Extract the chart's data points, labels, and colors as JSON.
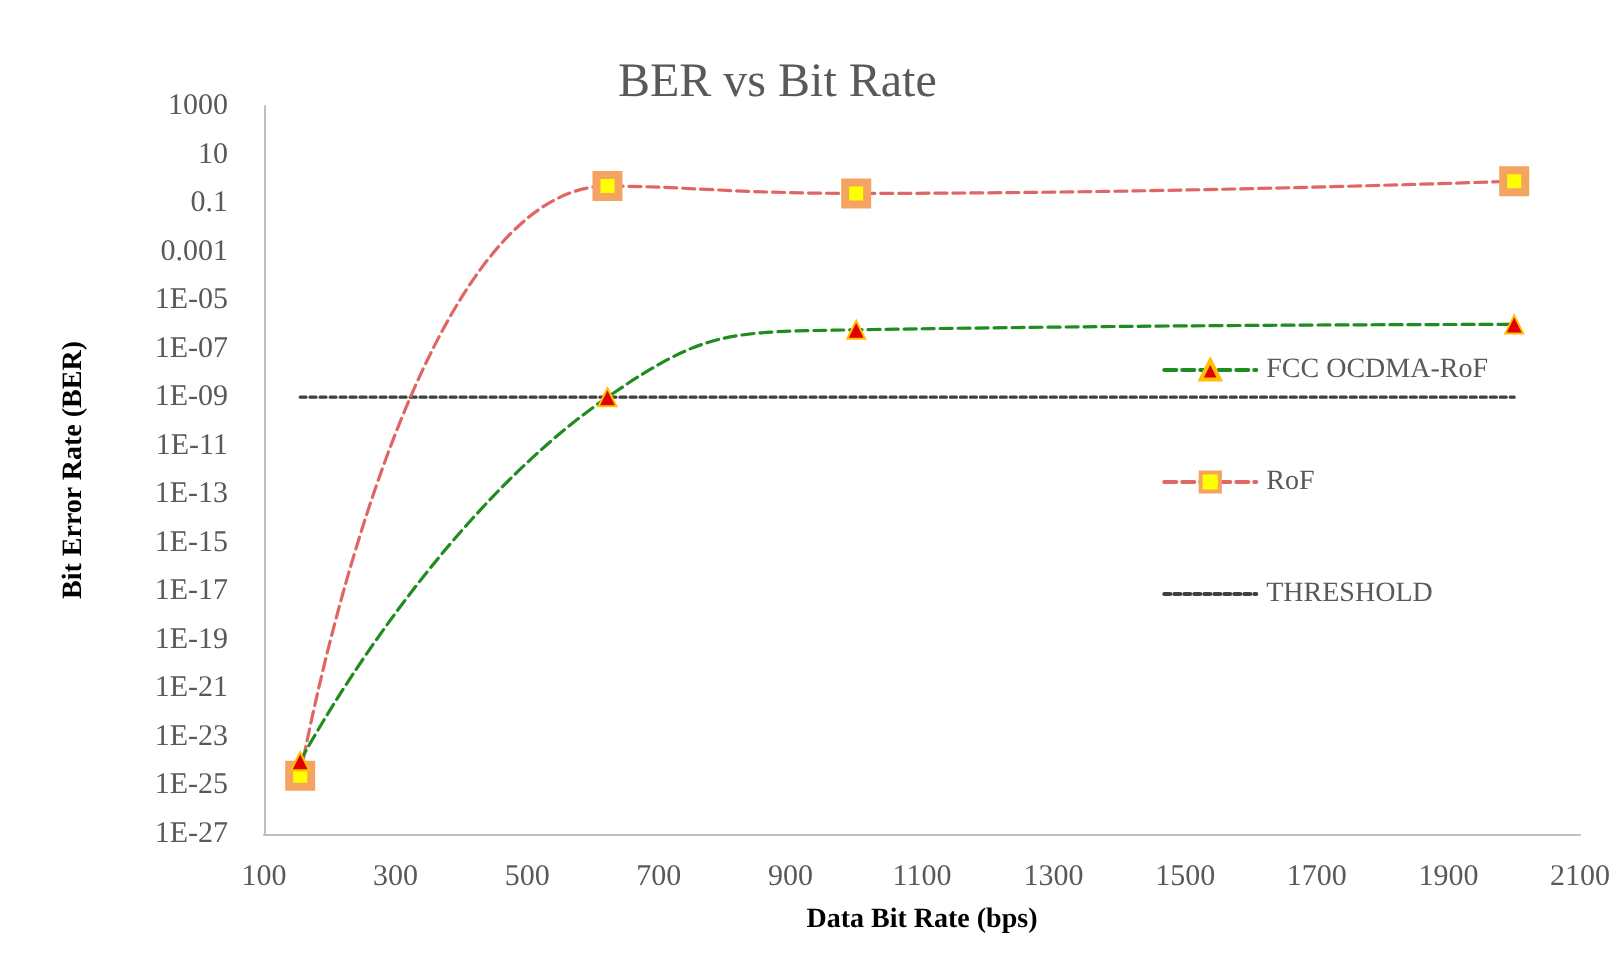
{
  "chart_data": {
    "type": "line",
    "title": "BER vs Bit Rate",
    "xlabel": "Data Bit Rate (bps)",
    "ylabel": "Bit Error Rate (BER)",
    "log": "y",
    "grid": false,
    "legend": "right",
    "xlim": [
      100,
      2100
    ],
    "xticks": [
      100,
      300,
      500,
      700,
      900,
      1100,
      1300,
      1500,
      1700,
      1900,
      2100
    ],
    "ylim": [
      1e-27,
      1000
    ],
    "yticks": [
      1000,
      10,
      0.1,
      0.001,
      {
        "value": 1e-05,
        "label": "1E-05"
      },
      {
        "value": 1e-07,
        "label": "1E-07"
      },
      {
        "value": 1e-09,
        "label": "1E-09"
      },
      {
        "value": 1e-11,
        "label": "1E-11"
      },
      {
        "value": 1e-13,
        "label": "1E-13"
      },
      {
        "value": 1e-15,
        "label": "1E-15"
      },
      {
        "value": 1e-17,
        "label": "1E-17"
      },
      {
        "value": 1e-19,
        "label": "1E-19"
      },
      {
        "value": 1e-21,
        "label": "1E-21"
      },
      {
        "value": 1e-23,
        "label": "1E-23"
      },
      {
        "value": 1e-25,
        "label": "1E-25"
      },
      {
        "value": 1e-27,
        "label": "1E-27"
      }
    ],
    "series": [
      {
        "name": "FCC OCDMA-RoF",
        "color": "#1e8c1e",
        "x": [
          155,
          622,
          1000,
          2000
        ],
        "values": [
          1e-24,
          1e-09,
          6e-07,
          1e-06
        ],
        "marker": "triangle",
        "line_style": "dashed"
      },
      {
        "name": "RoF",
        "color": "#e06666",
        "x": [
          155,
          622,
          1000,
          2000
        ],
        "values": [
          2.5e-25,
          0.5,
          0.25,
          0.8
        ],
        "marker": "square",
        "line_style": "dashed"
      },
      {
        "name": "THRESHOLD",
        "color": "#404040",
        "x": [
          155,
          2000
        ],
        "values": [
          1e-09,
          1e-09
        ],
        "marker": "none",
        "line_style": "dotted"
      }
    ]
  }
}
